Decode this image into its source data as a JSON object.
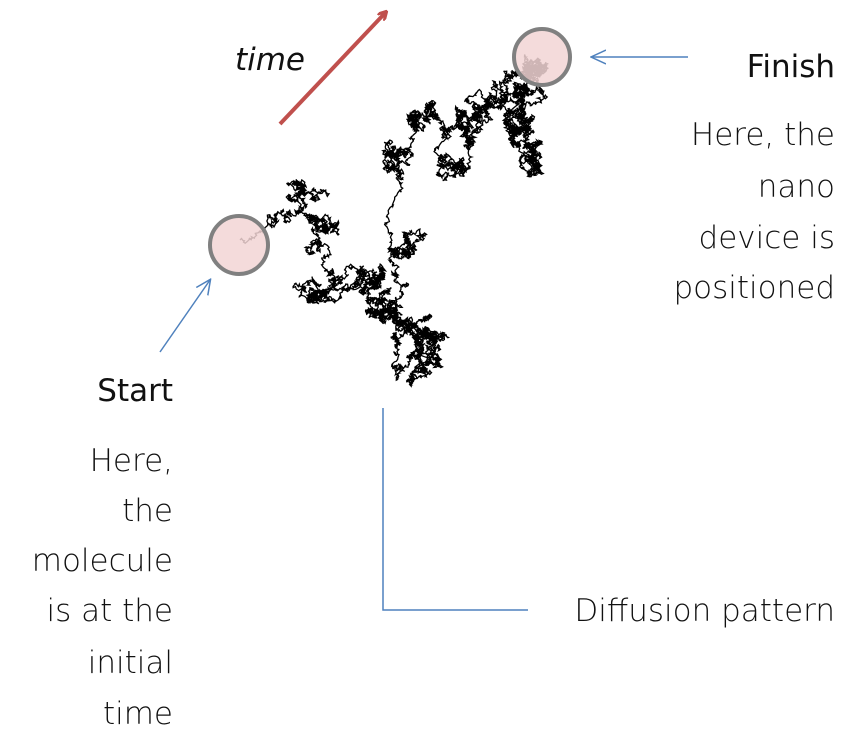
{
  "time_label": "time",
  "finish": {
    "title": "Finish",
    "lines": [
      "Here, the",
      "nano",
      "device is",
      "positioned"
    ]
  },
  "start": {
    "title": "Start",
    "lines": [
      "Here,",
      "the",
      "molecule",
      "is at the",
      "initial",
      "time"
    ]
  },
  "pattern_label": "Diffusion pattern"
}
